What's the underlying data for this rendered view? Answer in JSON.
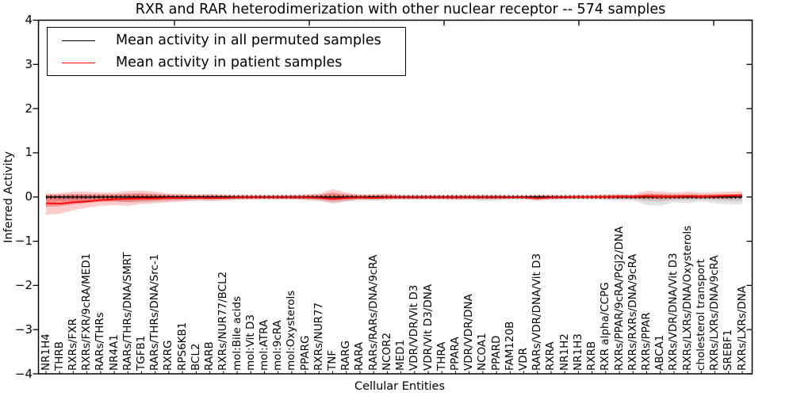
{
  "figure": {
    "background": "#ffffff"
  },
  "axes": {
    "ylabel": "Inferred Activity",
    "xlabel": "Cellular Entities",
    "yticks": [
      "4",
      "3",
      "2",
      "1",
      "0",
      "−1",
      "−2",
      "−3",
      "−4"
    ],
    "ylim": [
      -4,
      4
    ]
  },
  "chart_data": {
    "type": "line",
    "title": "RXR and RAR heterodimerization with other nuclear receptor -- 574 samples",
    "xlabel": "Cellular Entities",
    "ylabel": "Inferred Activity",
    "ylim": [
      -4,
      4
    ],
    "grid": false,
    "legend_position": "upper left",
    "categories": [
      "NR1H4",
      "THRB",
      "RXRs/FXR",
      "RXRs/FXR/9cRA/MED1",
      "RARs/THRs",
      "NR4A1",
      "RARs/THRs/DNA/SMRT",
      "TGFB1",
      "RARs/THRs/DNA/Src-1",
      "RXRG",
      "RPS6KB1",
      "BCL2",
      "RARB",
      "RXRs/NUR77/BCL2",
      "mol:Bile acids",
      "mol:Vit D3",
      "mol:ATRA",
      "mol:9cRA",
      "mol:Oxysterols",
      "PPARG",
      "RXRs/NUR77",
      "TNF",
      "RARG",
      "RARA",
      "RARs/RARs/DNA/9cRA",
      "NCOR2",
      "MED1",
      "VDR/VDR/Vit D3",
      "VDR/Vit D3/DNA",
      "THRA",
      "PPARA",
      "VDR/VDR/DNA",
      "NCOA1",
      "PPARD",
      "FAM120B",
      "VDR",
      "RARs/VDR/DNA/Vit D3",
      "RXRA",
      "NR1H2",
      "NR1H3",
      "RXRB",
      "RXR alpha/CCPG",
      "RXRs/PPAR/9cRA/PGJ2/DNA",
      "RXRs/RXRs/DNA/9cRA",
      "RXRs/PPAR",
      "ABCA1",
      "RXRs/VDR/DNA/Vit D3",
      "RXRs/LXRs/DNA/Oxysterols",
      "cholesterol transport",
      "RXRs/LXRs/DNA/9cRA",
      "SREBF1",
      "RXRs/LXRs/DNA"
    ],
    "series": [
      {
        "name": "Mean activity in all permuted samples",
        "color": "#000000",
        "values": [
          0,
          0,
          0,
          0,
          0,
          0,
          0,
          0,
          0,
          0,
          0,
          0,
          0,
          0,
          0,
          0,
          0,
          0,
          0,
          0,
          0,
          0,
          0,
          0,
          0,
          0,
          0,
          0,
          0,
          0,
          0,
          0,
          0,
          0,
          0,
          0,
          0,
          0,
          0,
          0,
          0,
          0,
          0,
          0,
          0,
          0,
          0,
          0,
          0,
          0,
          0,
          0
        ],
        "band_upper": [
          0.05,
          0.05,
          0.06,
          0.06,
          0.06,
          0.06,
          0.08,
          0.08,
          0.07,
          0.06,
          0.06,
          0.05,
          0.06,
          0.05,
          0.05,
          0.04,
          0.04,
          0.04,
          0.05,
          0.05,
          0.06,
          0.07,
          0.06,
          0.05,
          0.05,
          0.05,
          0.04,
          0.04,
          0.04,
          0.04,
          0.05,
          0.04,
          0.05,
          0.05,
          0.04,
          0.04,
          0.05,
          0.04,
          0.04,
          0.04,
          0.04,
          0.05,
          0.05,
          0.05,
          0.06,
          0.06,
          0.05,
          0.05,
          0.05,
          0.06,
          0.05,
          0.04
        ],
        "band_lower": [
          -0.08,
          -0.09,
          -0.1,
          -0.1,
          -0.09,
          -0.1,
          -0.12,
          -0.12,
          -0.11,
          -0.09,
          -0.08,
          -0.07,
          -0.08,
          -0.07,
          -0.06,
          -0.06,
          -0.05,
          -0.05,
          -0.06,
          -0.07,
          -0.08,
          -0.12,
          -0.09,
          -0.07,
          -0.08,
          -0.07,
          -0.06,
          -0.06,
          -0.06,
          -0.06,
          -0.07,
          -0.07,
          -0.09,
          -0.08,
          -0.06,
          -0.06,
          -0.08,
          -0.07,
          -0.06,
          -0.06,
          -0.06,
          -0.07,
          -0.08,
          -0.08,
          -0.18,
          -0.2,
          -0.12,
          -0.14,
          -0.1,
          -0.14,
          -0.16,
          -0.17
        ]
      },
      {
        "name": "Mean activity in patient samples",
        "color": "#ff0000",
        "values": [
          -0.14,
          -0.15,
          -0.12,
          -0.1,
          -0.07,
          -0.05,
          -0.04,
          -0.03,
          -0.03,
          -0.02,
          -0.02,
          -0.02,
          -0.02,
          -0.02,
          -0.01,
          -0.01,
          -0.01,
          -0.01,
          -0.01,
          -0.01,
          -0.02,
          -0.04,
          -0.02,
          -0.01,
          -0.02,
          -0.01,
          -0.01,
          -0.01,
          -0.01,
          -0.01,
          -0.01,
          -0.01,
          -0.01,
          -0.01,
          -0.01,
          -0.01,
          -0.03,
          -0.01,
          -0.01,
          0.0,
          0.0,
          0.0,
          0.01,
          0.01,
          0.02,
          0.01,
          0.01,
          0.02,
          0.01,
          0.02,
          0.03,
          0.04
        ],
        "band_upper": [
          0.08,
          0.09,
          0.12,
          0.12,
          0.1,
          0.1,
          0.13,
          0.15,
          0.12,
          0.08,
          0.07,
          0.06,
          0.07,
          0.06,
          0.05,
          0.05,
          0.05,
          0.05,
          0.05,
          0.06,
          0.08,
          0.18,
          0.1,
          0.06,
          0.07,
          0.08,
          0.05,
          0.05,
          0.05,
          0.05,
          0.05,
          0.05,
          0.05,
          0.05,
          0.04,
          0.04,
          0.05,
          0.05,
          0.04,
          0.05,
          0.05,
          0.06,
          0.07,
          0.06,
          0.14,
          0.12,
          0.1,
          0.12,
          0.1,
          0.11,
          0.12,
          0.13
        ],
        "band_lower": [
          -0.4,
          -0.38,
          -0.3,
          -0.24,
          -0.2,
          -0.18,
          -0.2,
          -0.16,
          -0.14,
          -0.12,
          -0.1,
          -0.08,
          -0.09,
          -0.08,
          -0.06,
          -0.05,
          -0.05,
          -0.05,
          -0.05,
          -0.06,
          -0.08,
          -0.15,
          -0.1,
          -0.06,
          -0.07,
          -0.06,
          -0.05,
          -0.05,
          -0.05,
          -0.05,
          -0.06,
          -0.05,
          -0.05,
          -0.05,
          -0.04,
          -0.04,
          -0.08,
          -0.05,
          -0.04,
          -0.04,
          -0.04,
          -0.05,
          -0.05,
          -0.05,
          -0.05,
          -0.06,
          -0.05,
          -0.04,
          -0.05,
          -0.04,
          -0.05,
          -0.03
        ]
      }
    ],
    "band_colors": {
      "permuted_outer": "rgba(0,0,0,0.11)",
      "permuted_inner": "rgba(0,0,0,0.10)",
      "patient_outer": "rgba(255,0,0,0.20)",
      "patient_inner": "rgba(255,0,0,0.30)"
    }
  }
}
